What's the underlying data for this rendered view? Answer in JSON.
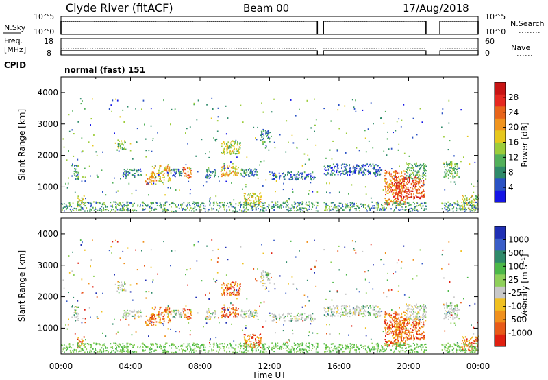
{
  "header": {
    "station": "Clyde River (fitACF)",
    "beam": "Beam 00",
    "date": "17/Aug/2018"
  },
  "cpid_label": "CPID",
  "cpid_text": "normal (fast) 151",
  "chart_data": [
    {
      "type": "line",
      "name": "noise",
      "left_label": "N.Sky",
      "right_label": "N.Search",
      "left_ticks": [
        "10^5",
        "10^0"
      ],
      "right_ticks": [
        "10^5",
        "10^0"
      ],
      "segments": [
        [
          0.0,
          14.75
        ],
        [
          15.1,
          21.0
        ],
        [
          21.8,
          24.0
        ]
      ],
      "sky_level": 3.7,
      "search_level": 3.6,
      "ylim_log10": [
        0,
        5
      ]
    },
    {
      "type": "line",
      "name": "frequency",
      "left_label_line1": "Freq.",
      "left_label_line2": "[MHz]",
      "right_label": "Nave",
      "left_ticks": [
        "18",
        "8"
      ],
      "right_ticks": [
        "60",
        "0"
      ],
      "freq_mhz": 10.5,
      "nave": 22,
      "freq_range": [
        8,
        18
      ],
      "nave_range": [
        0,
        60
      ],
      "segments": [
        [
          0.0,
          14.75
        ],
        [
          15.1,
          21.0
        ],
        [
          21.8,
          24.0
        ]
      ]
    },
    {
      "type": "heatmap",
      "name": "power",
      "ylabel": "Slant Range [km]",
      "xlim_hours": [
        0,
        24
      ],
      "ylim_km": [
        180,
        4500
      ],
      "yticks": [
        "1000",
        "2000",
        "3000",
        "4000"
      ],
      "colorbar": {
        "label": "Power [dB]",
        "ticks": [
          "4",
          "8",
          "12",
          "16",
          "20",
          "24",
          "28"
        ],
        "range": [
          0,
          30
        ],
        "colors": [
          "#1414e6",
          "#2a52c4",
          "#2f8a6a",
          "#52b05a",
          "#9ccc3a",
          "#e6c71c",
          "#f0941e",
          "#e8641a",
          "#e62820",
          "#c81414"
        ]
      }
    },
    {
      "type": "heatmap",
      "name": "velocity",
      "ylabel": "Slant Range [km]",
      "xlim_hours": [
        0,
        24
      ],
      "ylim_km": [
        180,
        4500
      ],
      "yticks": [
        "1000",
        "2000",
        "3000",
        "4000"
      ],
      "xticks": [
        "00:00",
        "04:00",
        "08:00",
        "12:00",
        "16:00",
        "20:00",
        "00:00"
      ],
      "xlabel": "Time UT",
      "colorbar": {
        "label": "Velocity [m s⁻¹]",
        "ticks": [
          "1000",
          "500",
          "100",
          "25",
          "-25",
          "-100",
          "-500",
          "-1000"
        ],
        "colors": [
          "#1f2fb4",
          "#3a5ec8",
          "#2f8a6a",
          "#4cb848",
          "#8fd05a",
          "#c8c8c8",
          "#f0c020",
          "#f0901c",
          "#e85a18",
          "#e02010"
        ]
      }
    }
  ],
  "echo_regions": [
    {
      "t": [
        0.6,
        1.0
      ],
      "r": [
        1200,
        1700
      ],
      "p": 8
    },
    {
      "t": [
        0.9,
        1.3
      ],
      "r": [
        350,
        700
      ],
      "p": 14
    },
    {
      "t": [
        3.2,
        3.7
      ],
      "r": [
        2150,
        2450
      ],
      "p": 12
    },
    {
      "t": [
        3.5,
        4.6
      ],
      "r": [
        1300,
        1550
      ],
      "p": 7
    },
    {
      "t": [
        4.8,
        5.3
      ],
      "r": [
        1050,
        1400
      ],
      "p": 20
    },
    {
      "t": [
        5.2,
        6.3
      ],
      "r": [
        1150,
        1650
      ],
      "p": 18
    },
    {
      "t": [
        6.1,
        7.0
      ],
      "r": [
        1300,
        1550
      ],
      "p": 6
    },
    {
      "t": [
        7.0,
        7.5
      ],
      "r": [
        1250,
        1600
      ],
      "p": 22
    },
    {
      "t": [
        8.3,
        8.9
      ],
      "r": [
        1250,
        1550
      ],
      "p": 7
    },
    {
      "t": [
        9.1,
        10.2
      ],
      "r": [
        1300,
        1650
      ],
      "p": 17
    },
    {
      "t": [
        9.2,
        10.3
      ],
      "r": [
        2000,
        2450
      ],
      "p": 14
    },
    {
      "t": [
        10.3,
        11.4
      ],
      "r": [
        1300,
        1550
      ],
      "p": 8
    },
    {
      "t": [
        11.4,
        12.0
      ],
      "r": [
        2400,
        2800
      ],
      "p": 7
    },
    {
      "t": [
        12.1,
        14.6
      ],
      "r": [
        1200,
        1450
      ],
      "p": 5
    },
    {
      "t": [
        10.5,
        11.5
      ],
      "r": [
        350,
        800
      ],
      "p": 16
    },
    {
      "t": [
        15.1,
        18.4
      ],
      "r": [
        1350,
        1700
      ],
      "p": 5
    },
    {
      "t": [
        18.6,
        19.8
      ],
      "r": [
        400,
        1500
      ],
      "p": 21
    },
    {
      "t": [
        19.8,
        21.0
      ],
      "r": [
        1200,
        1750
      ],
      "p": 10
    },
    {
      "t": [
        19.2,
        20.9
      ],
      "r": [
        600,
        1300
      ],
      "p": 24
    },
    {
      "t": [
        22.0,
        22.8
      ],
      "r": [
        1250,
        1800
      ],
      "p": 11
    },
    {
      "t": [
        23.0,
        24.0
      ],
      "r": [
        250,
        700
      ],
      "p": 15
    }
  ],
  "colorbar_title_power": "Power [dB]",
  "colorbar_title_velocity": "Velocity [m s⁻¹]"
}
